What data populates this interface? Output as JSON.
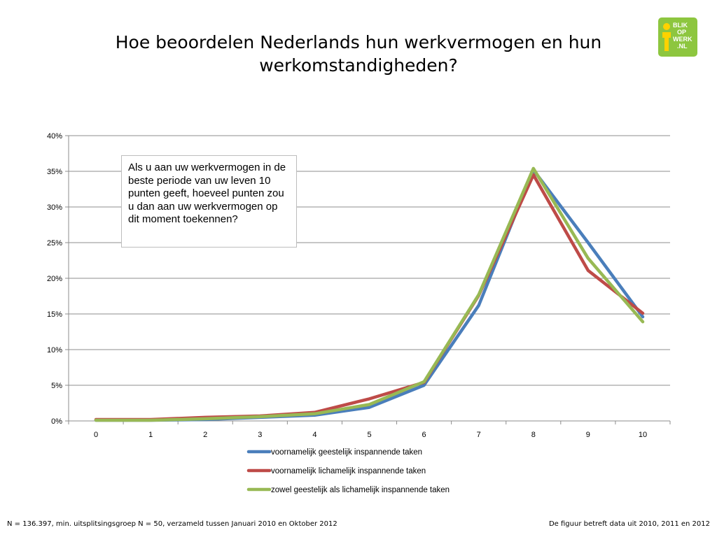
{
  "title": "Hoe beoordelen Nederlands hun werkvermogen en hun werkomstandigheden?",
  "logo": {
    "lines": [
      "BLIK",
      "OP",
      "WERK",
      ".NL"
    ],
    "color": "#8dc63f"
  },
  "callout_text": "Als u aan uw werkvermogen in de beste periode van uw leven 10 punten geeft, hoeveel punten zou u dan aan uw werkvermogen op dit moment toekennen?",
  "footer": {
    "left": "N = 136.397, min. uitsplitsingsgroep N = 50, verzameld tussen Januari 2010 en Oktober 2012",
    "right": "De figuur betreft data uit 2010, 2011 en 2012"
  },
  "chart_data": {
    "type": "line",
    "title": "",
    "xlabel": "",
    "ylabel": "",
    "x": [
      0,
      1,
      2,
      3,
      4,
      5,
      6,
      7,
      8,
      9,
      10
    ],
    "x_tick_labels": [
      "0",
      "1",
      "2",
      "3",
      "4",
      "5",
      "6",
      "7",
      "8",
      "9",
      "10"
    ],
    "ylim": [
      0,
      40
    ],
    "y_ticks": [
      0,
      5,
      10,
      15,
      20,
      25,
      30,
      35,
      40
    ],
    "y_tick_labels": [
      "0%",
      "5%",
      "10%",
      "15%",
      "20%",
      "25%",
      "30%",
      "35%",
      "40%"
    ],
    "grid": true,
    "legend_position": "bottom",
    "series": [
      {
        "name": "voornamelijk geestelijk inspannende taken",
        "color": "#4a7ebb",
        "values": [
          0.1,
          0.1,
          0.2,
          0.5,
          0.8,
          1.9,
          5.0,
          16.2,
          35.2,
          25.0,
          14.6
        ]
      },
      {
        "name": "voornamelijk lichamelijk inspannende taken",
        "color": "#be4b48",
        "values": [
          0.2,
          0.2,
          0.5,
          0.7,
          1.2,
          3.1,
          5.4,
          17.6,
          34.5,
          21.1,
          15.1
        ]
      },
      {
        "name": "zowel geestelijk als lichamelijk inspannende taken",
        "color": "#98b954",
        "values": [
          0.1,
          0.1,
          0.3,
          0.6,
          1.0,
          2.3,
          5.5,
          17.7,
          35.4,
          22.8,
          13.9
        ]
      }
    ]
  }
}
